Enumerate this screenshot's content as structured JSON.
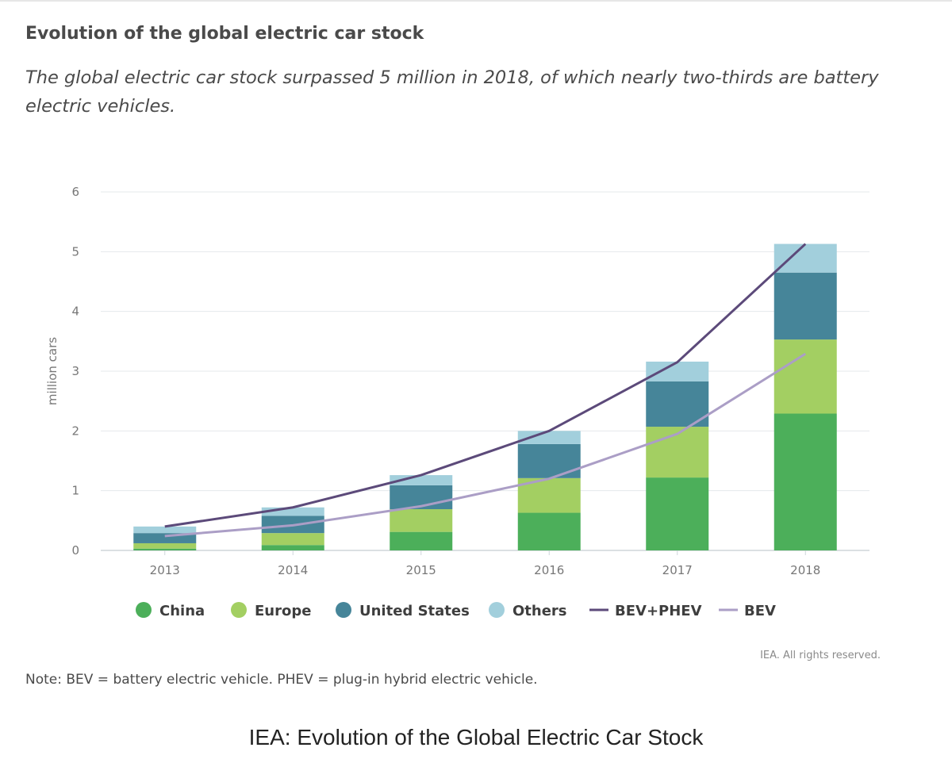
{
  "header": {
    "title": "Evolution of the global electric car stock",
    "subtitle": "The global electric car stock surpassed 5 million in 2018, of which nearly two-thirds are battery electric vehicles."
  },
  "footer": {
    "rights": "IEA. All rights reserved.",
    "note": "Note: BEV = battery electric vehicle. PHEV = plug-in hybrid electric vehicle."
  },
  "caption": "IEA: Evolution of the Global Electric Car Stock",
  "chart_data": {
    "type": "bar",
    "stacked": true,
    "categories": [
      "2013",
      "2014",
      "2015",
      "2016",
      "2017",
      "2018"
    ],
    "ylabel": "million cars",
    "ylim": [
      0,
      6
    ],
    "yticks": [
      0,
      1,
      2,
      3,
      4,
      5,
      6
    ],
    "grid": true,
    "legend_position": "bottom",
    "series": [
      {
        "name": "China",
        "kind": "bar",
        "color": "#4caf5a",
        "values": [
          0.03,
          0.09,
          0.31,
          0.63,
          1.22,
          2.29
        ]
      },
      {
        "name": "Europe",
        "kind": "bar",
        "color": "#a3cf62",
        "values": [
          0.09,
          0.2,
          0.38,
          0.58,
          0.85,
          1.24
        ]
      },
      {
        "name": "United States",
        "kind": "bar",
        "color": "#468599",
        "values": [
          0.17,
          0.29,
          0.4,
          0.57,
          0.76,
          1.12
        ]
      },
      {
        "name": "Others",
        "kind": "bar",
        "color": "#a2cfdc",
        "values": [
          0.11,
          0.14,
          0.17,
          0.22,
          0.33,
          0.48
        ]
      },
      {
        "name": "BEV+PHEV",
        "kind": "line",
        "color": "#5c4a7a",
        "values": [
          0.4,
          0.72,
          1.26,
          2.0,
          3.15,
          5.13
        ]
      },
      {
        "name": "BEV",
        "kind": "line",
        "color": "#ab9ec6",
        "values": [
          0.24,
          0.42,
          0.74,
          1.2,
          1.95,
          3.29
        ]
      }
    ]
  }
}
